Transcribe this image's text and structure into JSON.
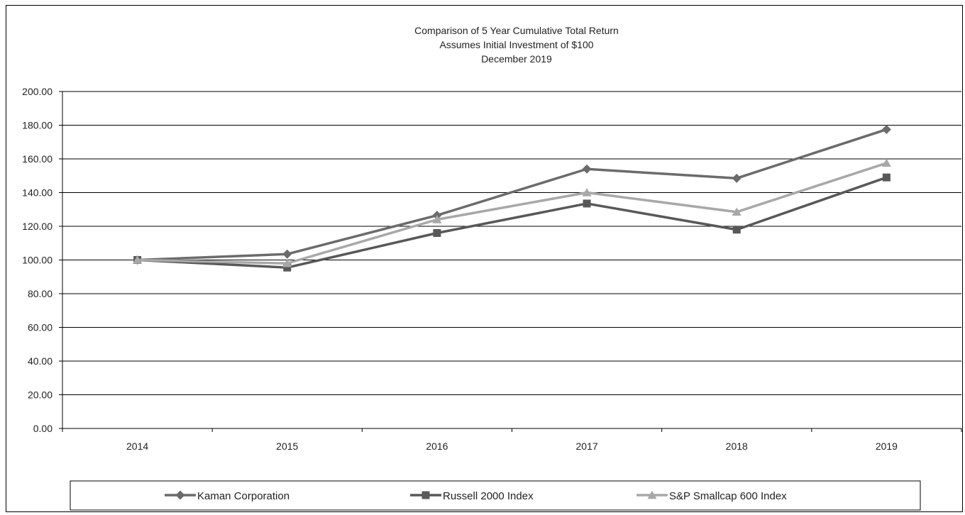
{
  "chart_data": {
    "type": "line",
    "title_lines": [
      "Comparison  of 5  Year Cumulative  Total Return",
      "Assumes Initial Investment  of $100",
      "December  2019"
    ],
    "categories": [
      "2014",
      "2015",
      "2016",
      "2017",
      "2018",
      "2019"
    ],
    "y_tick_labels": [
      "0.00",
      "20.00",
      "40.00",
      "60.00",
      "80.00",
      "100.00",
      "120.00",
      "140.00",
      "160.00",
      "180.00",
      "200.00"
    ],
    "ylim": [
      0,
      200
    ],
    "grid": "horizontal",
    "legend_position": "bottom",
    "series": [
      {
        "name": "Kaman Corporation",
        "marker": "diamond",
        "color": "#6b6b6b",
        "values": [
          100.0,
          103.5,
          126.5,
          154.0,
          148.5,
          177.5
        ]
      },
      {
        "name": "Russell 2000 Index",
        "marker": "square",
        "color": "#585858",
        "values": [
          100.0,
          95.5,
          116.0,
          133.5,
          118.0,
          149.0
        ]
      },
      {
        "name": "S&P Smallcap 600 Index",
        "marker": "triangle",
        "color": "#a8a8a8",
        "values": [
          100.0,
          98.0,
          124.0,
          140.0,
          128.5,
          157.5
        ]
      }
    ]
  }
}
